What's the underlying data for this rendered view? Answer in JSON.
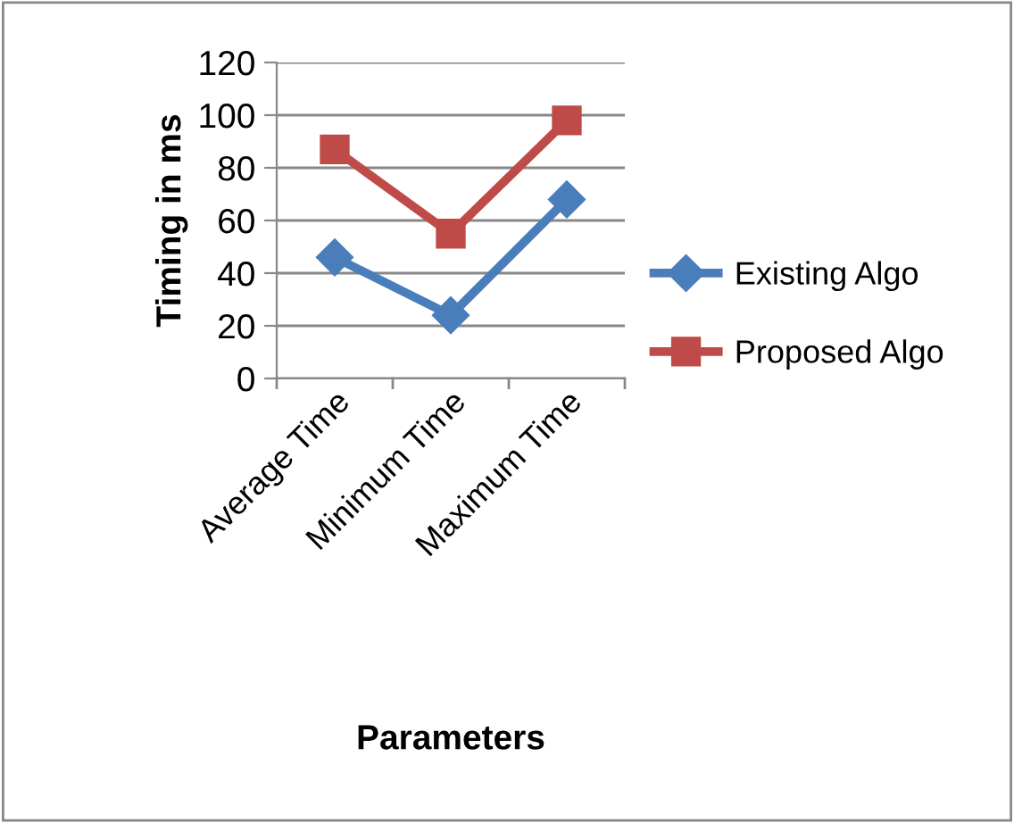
{
  "chart_data": {
    "type": "line",
    "xlabel": "Parameters",
    "ylabel": "Timing in ms",
    "categories": [
      "Average Time",
      "Minimum Time",
      "Maximum Time"
    ],
    "series": [
      {
        "name": "Existing Algo",
        "color": "#4a7ebb",
        "values": [
          46,
          24,
          68
        ],
        "marker": "diamond"
      },
      {
        "name": "Proposed Algo",
        "color": "#be4b48",
        "values": [
          87,
          55,
          98
        ],
        "marker": "square"
      }
    ],
    "ylim": [
      0,
      120
    ],
    "yticks": [
      0,
      20,
      40,
      60,
      80,
      100,
      120
    ],
    "grid": "y",
    "legend": "right"
  }
}
